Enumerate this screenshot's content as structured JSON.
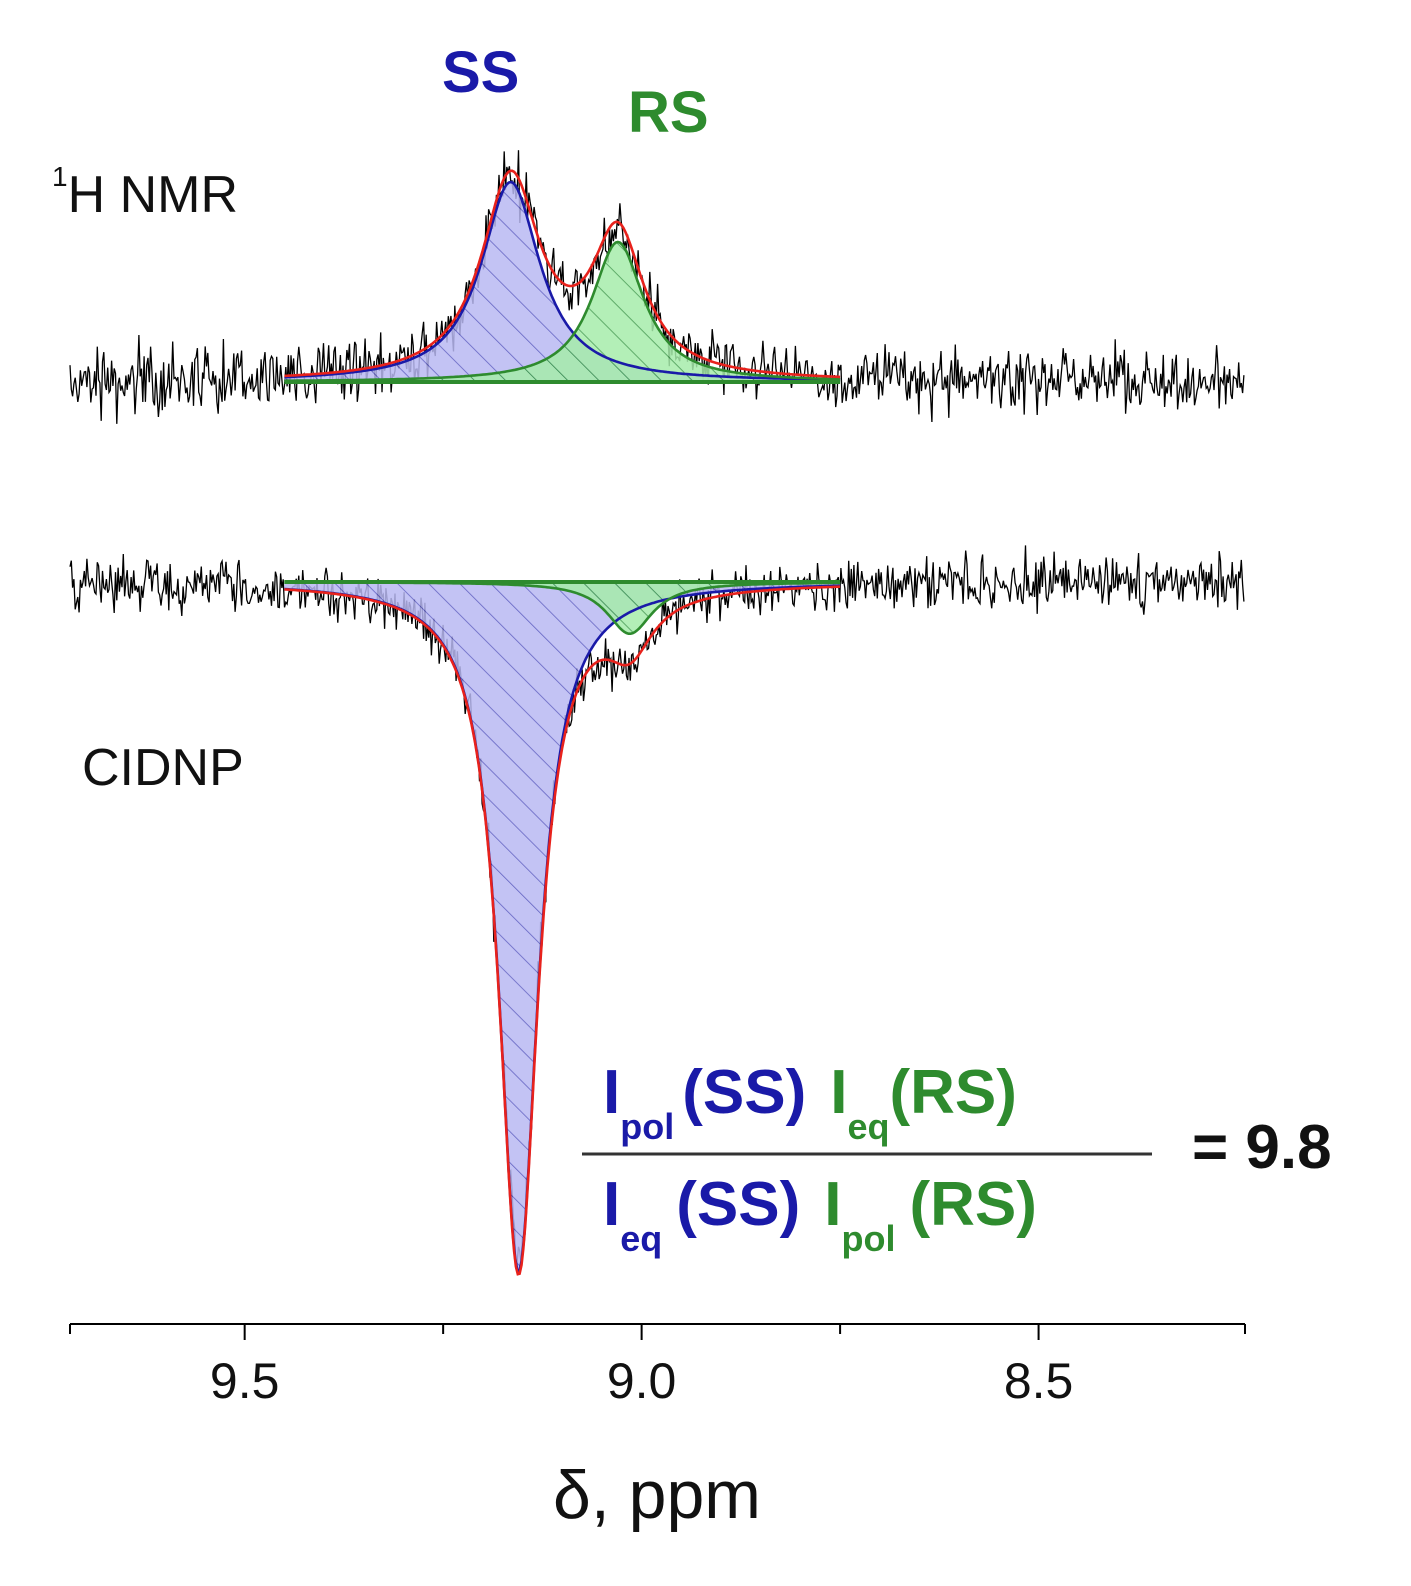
{
  "chart_data": {
    "type": "line",
    "xlabel": "δ, ppm",
    "xlim": [
      9.72,
      8.24
    ],
    "x_reversed": true,
    "xticks_major": [
      9.5,
      9.0,
      8.5
    ],
    "xtick_labels": [
      "9.5",
      "9.0",
      "8.5"
    ],
    "xticks_minor": [
      9.25,
      8.75
    ],
    "grid": false,
    "panels": [
      {
        "label_sup": "1",
        "label": "H NMR",
        "sign": 1,
        "noise_range": [
          9.72,
          8.24
        ],
        "fit_range": [
          9.45,
          8.75
        ],
        "series": [
          {
            "name": "SS",
            "type": "lorentzian",
            "center": 9.165,
            "height": 1.0,
            "hwhm": 0.045,
            "color": "#1a1aa8",
            "fill": "#b3b3f0"
          },
          {
            "name": "RS",
            "type": "lorentzian",
            "center": 9.03,
            "height": 0.7,
            "hwhm": 0.04,
            "color": "#2e8b2e",
            "fill": "#9de89d"
          }
        ],
        "sum_color": "#e8221c"
      },
      {
        "label": "CIDNP",
        "sign": -1,
        "noise_range": [
          9.72,
          8.24
        ],
        "noise_gap": [
          9.18,
          9.12
        ],
        "fit_range": [
          9.45,
          8.75
        ],
        "series": [
          {
            "name": "SS",
            "type": "lorentzian",
            "center": 9.155,
            "height": 1.0,
            "hwhm": 0.03,
            "color": "#1a1aa8",
            "fill": "#b3b3f0"
          },
          {
            "name": "RS",
            "type": "lorentzian",
            "center": 9.015,
            "height": 0.075,
            "hwhm": 0.035,
            "color": "#2e8b2e",
            "fill": "#9de89d"
          }
        ],
        "sum_color": "#e8221c"
      }
    ],
    "annotations": {
      "ss_label": "SS",
      "rs_label": "RS",
      "ratio": {
        "num_ss_main": "I",
        "num_ss_sub": "pol",
        "num_ss_arg": "(SS)",
        "num_rs_main": "I",
        "num_rs_sub": "eq",
        "num_rs_arg": "(RS)",
        "den_ss_main": "I",
        "den_ss_sub": "eq",
        "den_ss_arg": "(SS)",
        "den_rs_main": "I",
        "den_rs_sub": "pol",
        "den_rs_arg": "(RS)",
        "result": "= 9.8"
      }
    },
    "colors": {
      "ss": "#1a1aa8",
      "rs": "#2e8b2e",
      "sum": "#e8221c",
      "noise": "#000000"
    }
  }
}
